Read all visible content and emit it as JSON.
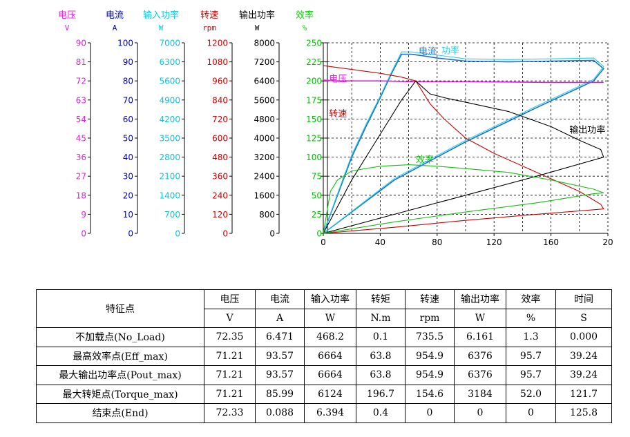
{
  "axes": [
    {
      "name": "电压",
      "unit": "V",
      "color": "#e020e0",
      "ticks": [
        "90",
        "81",
        "72",
        "63",
        "54",
        "45",
        "36",
        "27",
        "18",
        "9",
        "0"
      ]
    },
    {
      "name": "电流",
      "unit": "A",
      "color": "#0000cc",
      "ticks": [
        "100",
        "90",
        "80",
        "70",
        "60",
        "50",
        "40",
        "30",
        "20",
        "10",
        "0"
      ]
    },
    {
      "name": "输入功率",
      "unit": "W",
      "color": "#00c8e0",
      "ticks": [
        "7000",
        "6300",
        "5600",
        "4900",
        "4200",
        "3500",
        "2800",
        "2100",
        "1400",
        "700",
        "0"
      ]
    },
    {
      "name": "转速",
      "unit": "rpm",
      "color": "#cc0000",
      "ticks": [
        "1200",
        "1080",
        "960",
        "840",
        "720",
        "600",
        "480",
        "360",
        "240",
        "120",
        "0"
      ]
    },
    {
      "name": "输出功率",
      "unit": "W",
      "color": "#000000",
      "ticks": [
        "8000",
        "7200",
        "6400",
        "5600",
        "4800",
        "4000",
        "3200",
        "2400",
        "1600",
        "800",
        "0"
      ]
    },
    {
      "name": "效率",
      "unit": "%",
      "color": "#00d000",
      "ticks": [
        "",
        "",
        "",
        "",
        "",
        "",
        "",
        "",
        "",
        "",
        ""
      ]
    }
  ],
  "chart_data": {
    "type": "line",
    "xlabel": "",
    "xlim": [
      0,
      200
    ],
    "ylim": [
      0,
      250
    ],
    "x_ticks": [
      "0",
      "40",
      "80",
      "120",
      "160",
      "20"
    ],
    "y_ticks": [
      "250",
      "225",
      "200",
      "175",
      "150",
      "125",
      "100",
      "75",
      "50",
      "25",
      "0"
    ],
    "grid": true,
    "series": [
      {
        "name": "电流",
        "color": "#1e6fd0",
        "x": [
          0,
          10,
          20,
          30,
          40,
          48,
          55,
          62,
          70,
          80,
          100,
          130,
          160,
          190,
          197,
          190,
          150,
          100,
          50,
          0
        ],
        "y": [
          0,
          50,
          100,
          140,
          178,
          210,
          235,
          235,
          233,
          230,
          226,
          225,
          226,
          227,
          216,
          200,
          165,
          120,
          70,
          0
        ]
      },
      {
        "name": "输入功率",
        "color": "#22d3e8",
        "x": [
          0,
          10,
          20,
          30,
          40,
          48,
          55,
          62,
          70,
          80,
          100,
          130,
          160,
          190,
          197,
          190,
          150,
          100,
          50,
          0
        ],
        "y": [
          0,
          52,
          103,
          143,
          180,
          212,
          238,
          238,
          236,
          234,
          229,
          228,
          229,
          230,
          219,
          202,
          167,
          122,
          72,
          0
        ]
      },
      {
        "name": "电压",
        "color": "#e020e0",
        "x": [
          0,
          10,
          40,
          60,
          100,
          160,
          197
        ],
        "y": [
          201,
          200,
          200,
          199,
          199,
          198,
          198
        ]
      },
      {
        "name": "转速",
        "color": "#cc0000",
        "x": [
          0,
          20,
          40,
          55,
          65,
          75,
          85,
          100,
          120,
          150,
          180,
          195,
          197,
          150,
          100,
          50,
          0
        ],
        "y": [
          220,
          215,
          210,
          205,
          200,
          170,
          150,
          125,
          105,
          80,
          55,
          38,
          32,
          25,
          17,
          8,
          0
        ]
      },
      {
        "name": "输出功率",
        "color": "#000000",
        "x": [
          0,
          20,
          40,
          55,
          65,
          75,
          85,
          100,
          130,
          160,
          180,
          195,
          197,
          150,
          100,
          50,
          0
        ],
        "y": [
          0,
          70,
          130,
          175,
          200,
          183,
          178,
          172,
          160,
          140,
          122,
          110,
          100,
          75,
          50,
          25,
          0
        ]
      },
      {
        "name": "效率",
        "color": "#10c010",
        "x": [
          0,
          5,
          10,
          20,
          40,
          60,
          80,
          100,
          130,
          160,
          190,
          197,
          190,
          150,
          100,
          50,
          0
        ],
        "y": [
          0,
          55,
          70,
          82,
          88,
          90,
          88,
          85,
          80,
          70,
          58,
          53,
          52,
          40,
          28,
          15,
          0
        ]
      }
    ],
    "annotations": [
      {
        "text": "电流",
        "color": "#1e6fd0",
        "x": 67,
        "y": 235
      },
      {
        "text": "功率",
        "color": "#22d3e8",
        "x": 83,
        "y": 236
      },
      {
        "text": "电压",
        "color": "#e020e0",
        "x": 4,
        "y": 199
      },
      {
        "text": "转速",
        "color": "#cc0000",
        "x": 4,
        "y": 153
      },
      {
        "text": "输出功率",
        "color": "#000000",
        "x": 173,
        "y": 132
      },
      {
        "text": "效率",
        "color": "#10c010",
        "x": 65,
        "y": 93
      }
    ]
  },
  "table": {
    "corner_label": "特征点",
    "headers": [
      "电压",
      "电流",
      "输入功率",
      "转矩",
      "转速",
      "输出功率",
      "效率",
      "时间"
    ],
    "units": [
      "V",
      "A",
      "W",
      "N.m",
      "rpm",
      "W",
      "%",
      "S"
    ],
    "rows": [
      {
        "name": "不加载点(No_Load)",
        "values": [
          "72.35",
          "6.471",
          "468.2",
          "0.1",
          "735.5",
          "6.161",
          "1.3",
          "0.000"
        ]
      },
      {
        "name": "最高效率点(Eff_max)",
        "values": [
          "71.21",
          "93.57",
          "6664",
          "63.8",
          "954.9",
          "6376",
          "95.7",
          "39.24"
        ]
      },
      {
        "name": "最大输出功率点(Pout_max)",
        "values": [
          "71.21",
          "93.57",
          "6664",
          "63.8",
          "954.9",
          "6376",
          "95.7",
          "39.24"
        ]
      },
      {
        "name": "最大转矩点(Torque_max)",
        "values": [
          "71.21",
          "85.99",
          "6124",
          "196.7",
          "154.6",
          "3184",
          "52.0",
          "121.7"
        ]
      },
      {
        "name": "结束点(End)",
        "values": [
          "72.33",
          "0.088",
          "6.394",
          "0.4",
          "0",
          "0",
          "0",
          "125.8"
        ]
      }
    ]
  }
}
